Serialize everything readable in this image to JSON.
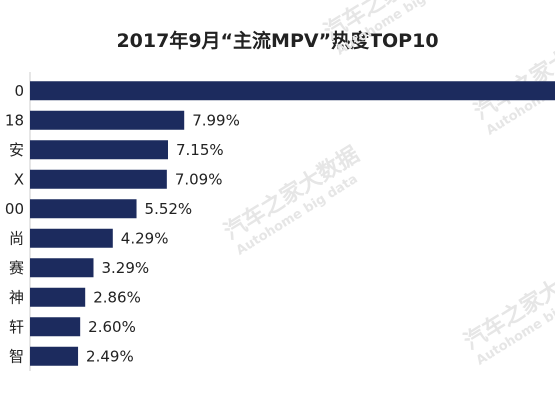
{
  "chart_data": {
    "type": "bar",
    "orientation": "horizontal",
    "title": "2017年9月“主流MPV”热度TOP10",
    "categories": [
      "0",
      "18",
      "安",
      "X",
      "00",
      "尚",
      "赛",
      "神",
      "轩",
      "智"
    ],
    "values": [
      null,
      7.99,
      7.15,
      7.09,
      5.52,
      4.29,
      3.29,
      2.86,
      2.6,
      2.49
    ],
    "value_labels": [
      "",
      "7.99%",
      "7.15%",
      "7.09%",
      "5.52%",
      "4.29%",
      "3.29%",
      "2.86%",
      "2.60%",
      "2.49%"
    ],
    "xlim": [
      0,
      12.2
    ],
    "bar_color": "#1c2b5e",
    "grid": false,
    "legend": "none"
  },
  "watermarks": [
    {
      "zh": "汽车之家大数据",
      "en": "Autohome big data"
    },
    {
      "zh": "汽车之家大数据",
      "en": "Autohome big data"
    },
    {
      "zh": "汽车之家大数据",
      "en": "Autohome big data"
    },
    {
      "zh": "汽车之家大数据",
      "en": "Autohome big data"
    }
  ]
}
